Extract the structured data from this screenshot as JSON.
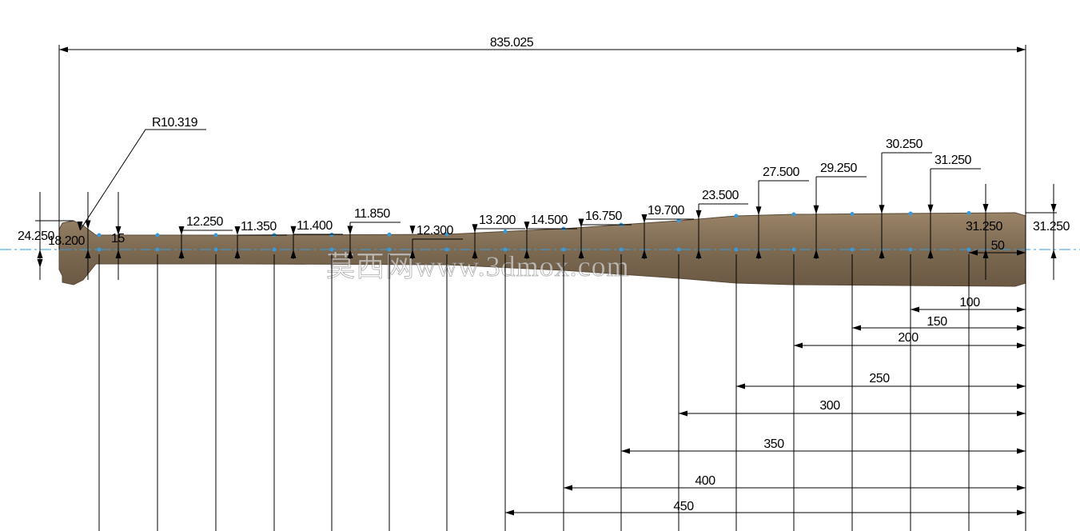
{
  "overall": "835.025",
  "radius": "R10.319",
  "knob_dims": [
    "24.250",
    "18.200",
    "15"
  ],
  "diameters": [
    "12.250",
    "11.350",
    "11.400",
    "11.850",
    "12.300",
    "13.200",
    "14.500",
    "16.750",
    "19.700",
    "23.500",
    "27.500",
    "29.250",
    "30.250",
    "31.250"
  ],
  "end_diameters": [
    "31.250",
    "31.250"
  ],
  "stations": [
    "50",
    "100",
    "150",
    "200",
    "250",
    "300",
    "350",
    "400",
    "450"
  ],
  "watermark": "莫西网www.3dmox.com"
}
